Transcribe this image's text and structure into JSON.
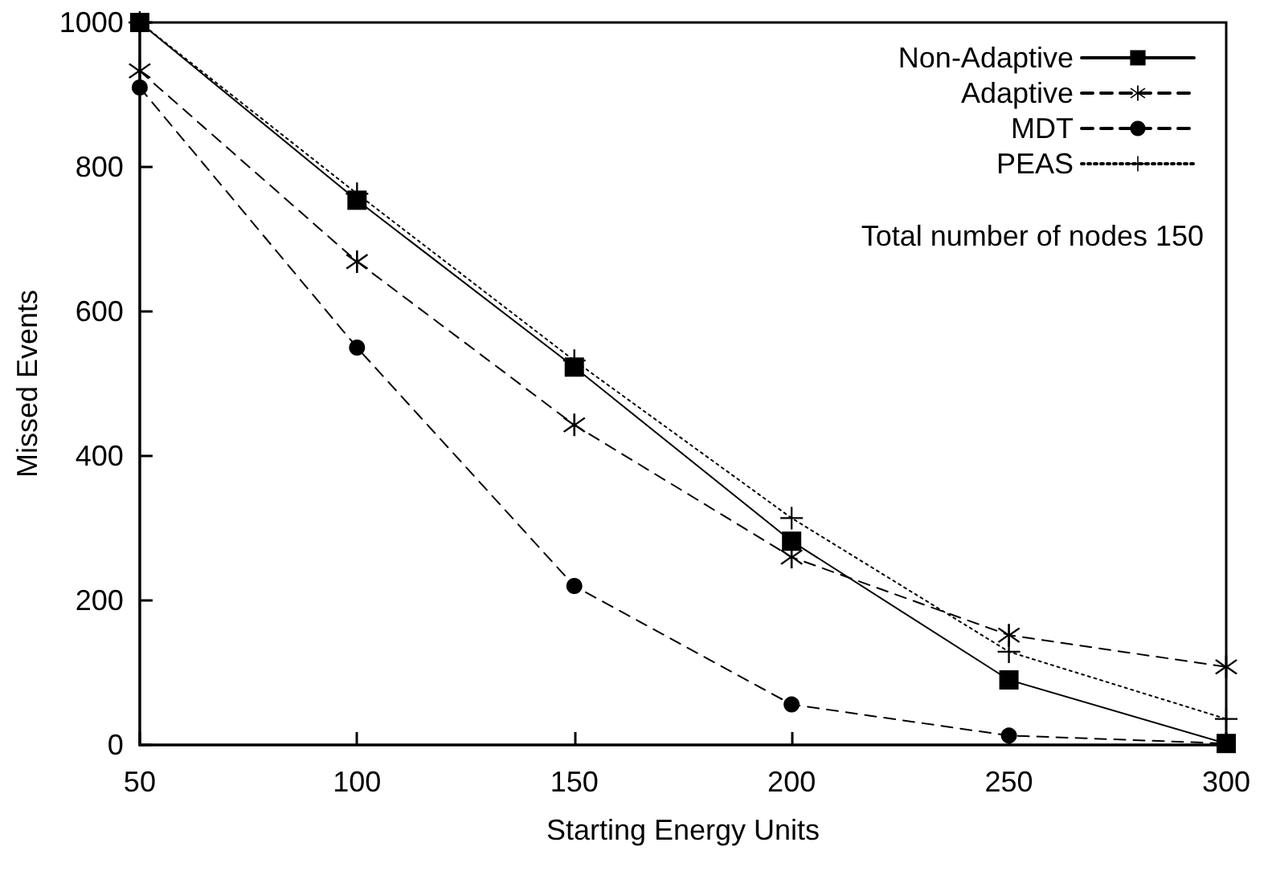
{
  "chart_data": {
    "type": "line",
    "xlabel": "Starting Energy Units",
    "ylabel": "Missed Events",
    "x": [
      50,
      100,
      150,
      200,
      250,
      300
    ],
    "series": [
      {
        "name": "Non-Adaptive",
        "color": "#000000",
        "marker": "square",
        "line_style": "solid",
        "values": [
          1000,
          754,
          523,
          282,
          90,
          2
        ]
      },
      {
        "name": "Adaptive",
        "color": "#000000",
        "marker": "star",
        "line_style": "dashed",
        "values": [
          933,
          669,
          443,
          260,
          152,
          108
        ]
      },
      {
        "name": "MDT",
        "color": "#000000",
        "marker": "circle",
        "line_style": "dashed",
        "values": [
          910,
          550,
          220,
          56,
          13,
          2
        ]
      },
      {
        "name": "PEAS",
        "color": "#000000",
        "marker": "cross",
        "line_style": "dotted",
        "values": [
          1000,
          763,
          532,
          314,
          129,
          36
        ]
      }
    ],
    "xlim": [
      50,
      300
    ],
    "xticks": [
      50,
      100,
      150,
      200,
      250,
      300
    ],
    "ylim": [
      0,
      1000
    ],
    "yticks": [
      0,
      200,
      400,
      600,
      800,
      1000
    ],
    "grid": false,
    "legend": "top right",
    "annotations": [
      "Total number of nodes 150"
    ]
  }
}
